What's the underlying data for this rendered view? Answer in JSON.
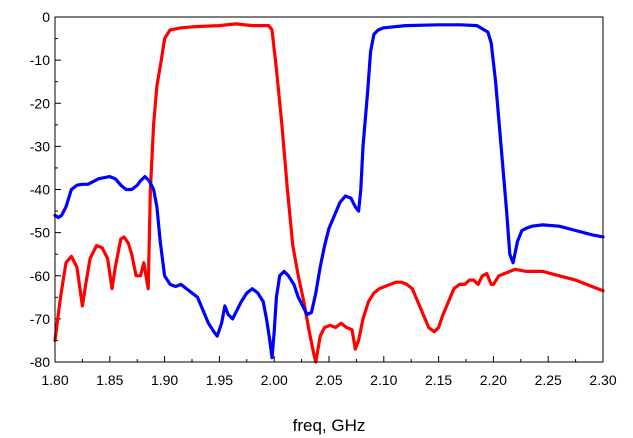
{
  "chart_data": {
    "type": "line",
    "title": "",
    "xlabel": "freq, GHz",
    "ylabel": "",
    "xlim": [
      1.8,
      2.3
    ],
    "ylim": [
      -80,
      0
    ],
    "x_ticks": [
      "1.80",
      "1.85",
      "1.90",
      "1.95",
      "2.00",
      "2.05",
      "2.10",
      "2.15",
      "2.20",
      "2.25",
      "2.30"
    ],
    "y_ticks": [
      "0",
      "-10",
      "-20",
      "-30",
      "-40",
      "-50",
      "-60",
      "-70",
      "-80"
    ],
    "grid": false,
    "series": [
      {
        "color": "#ff0000",
        "x": [
          1.8,
          1.805,
          1.81,
          1.815,
          1.82,
          1.825,
          1.828,
          1.832,
          1.838,
          1.843,
          1.848,
          1.852,
          1.855,
          1.86,
          1.863,
          1.867,
          1.87,
          1.874,
          1.878,
          1.881,
          1.885,
          1.887,
          1.89,
          1.893,
          1.897,
          1.9,
          1.905,
          1.915,
          1.93,
          1.95,
          1.965,
          1.98,
          1.995,
          1.998,
          2.002,
          2.007,
          2.012,
          2.017,
          2.022,
          2.027,
          2.032,
          2.036,
          2.038,
          2.042,
          2.046,
          2.051,
          2.056,
          2.061,
          2.066,
          2.071,
          2.074,
          2.077,
          2.081,
          2.086,
          2.091,
          2.096,
          2.101,
          2.106,
          2.111,
          2.116,
          2.121,
          2.126,
          2.131,
          2.136,
          2.141,
          2.146,
          2.15,
          2.154,
          2.159,
          2.164,
          2.169,
          2.174,
          2.178,
          2.182,
          2.186,
          2.19,
          2.194,
          2.198,
          2.2,
          2.205,
          2.21,
          2.215,
          2.22,
          2.23,
          2.245,
          2.26,
          2.275,
          2.29,
          2.3
        ],
        "values": [
          -75,
          -65,
          -57,
          -55.5,
          -58,
          -67,
          -62,
          -56,
          -53,
          -53.5,
          -56,
          -63,
          -58,
          -51.5,
          -51,
          -52.5,
          -55,
          -60,
          -60,
          -57,
          -63,
          -40,
          -25,
          -16,
          -10,
          -5,
          -3,
          -2.5,
          -2.2,
          -2,
          -1.6,
          -2,
          -2,
          -3,
          -12,
          -25,
          -40,
          -53,
          -60,
          -66,
          -73,
          -78,
          -80,
          -74,
          -72,
          -71.5,
          -72,
          -71,
          -72,
          -72.5,
          -77,
          -75,
          -70,
          -66,
          -64,
          -63,
          -62.5,
          -62,
          -61.5,
          -61.5,
          -62,
          -63,
          -66,
          -69,
          -72,
          -73,
          -72,
          -69,
          -66,
          -63,
          -62,
          -62,
          -61,
          -61,
          -62,
          -60,
          -59.5,
          -62,
          -62,
          -60,
          -59.5,
          -59,
          -58.5,
          -59,
          -59,
          -60,
          -61,
          -62.5,
          -63.5
        ]
      },
      {
        "color": "#0000ff",
        "x": [
          1.8,
          1.803,
          1.806,
          1.81,
          1.815,
          1.82,
          1.825,
          1.83,
          1.84,
          1.85,
          1.855,
          1.86,
          1.865,
          1.87,
          1.875,
          1.878,
          1.882,
          1.886,
          1.89,
          1.893,
          1.896,
          1.9,
          1.905,
          1.91,
          1.915,
          1.92,
          1.925,
          1.93,
          1.935,
          1.94,
          1.945,
          1.948,
          1.952,
          1.955,
          1.958,
          1.962,
          1.966,
          1.97,
          1.975,
          1.98,
          1.985,
          1.99,
          1.993,
          1.996,
          1.998,
          2.0,
          2.002,
          2.005,
          2.009,
          2.013,
          2.018,
          2.022,
          2.026,
          2.03,
          2.034,
          2.038,
          2.042,
          2.046,
          2.05,
          2.055,
          2.06,
          2.065,
          2.07,
          2.074,
          2.077,
          2.079,
          2.081,
          2.085,
          2.088,
          2.091,
          2.095,
          2.1,
          2.12,
          2.15,
          2.17,
          2.185,
          2.195,
          2.198,
          2.202,
          2.207,
          2.212,
          2.215,
          2.218,
          2.222,
          2.226,
          2.23,
          2.235,
          2.245,
          2.26,
          2.275,
          2.29,
          2.3
        ],
        "values": [
          -46,
          -46.5,
          -46,
          -44,
          -40,
          -39,
          -38.8,
          -38.8,
          -37.5,
          -37,
          -37.5,
          -39,
          -40,
          -40,
          -39,
          -38,
          -37,
          -38,
          -40,
          -44,
          -52,
          -60,
          -62,
          -62.5,
          -62,
          -63,
          -64,
          -65,
          -68,
          -71,
          -73,
          -74,
          -71,
          -67,
          -69,
          -70,
          -68,
          -66,
          -64,
          -63,
          -64,
          -66,
          -70,
          -75,
          -79,
          -73,
          -65,
          -60,
          -59,
          -60,
          -62,
          -65,
          -67,
          -69,
          -68.5,
          -64,
          -58,
          -53,
          -49,
          -46,
          -43,
          -41.5,
          -42,
          -44,
          -45,
          -40,
          -30,
          -18,
          -8,
          -4,
          -3,
          -2.5,
          -2,
          -1.8,
          -1.8,
          -2,
          -3.5,
          -6,
          -15,
          -30,
          -45,
          -55,
          -57,
          -52,
          -49.5,
          -49,
          -48.5,
          -48.2,
          -48.5,
          -49.5,
          -50.5,
          -51
        ]
      }
    ]
  }
}
